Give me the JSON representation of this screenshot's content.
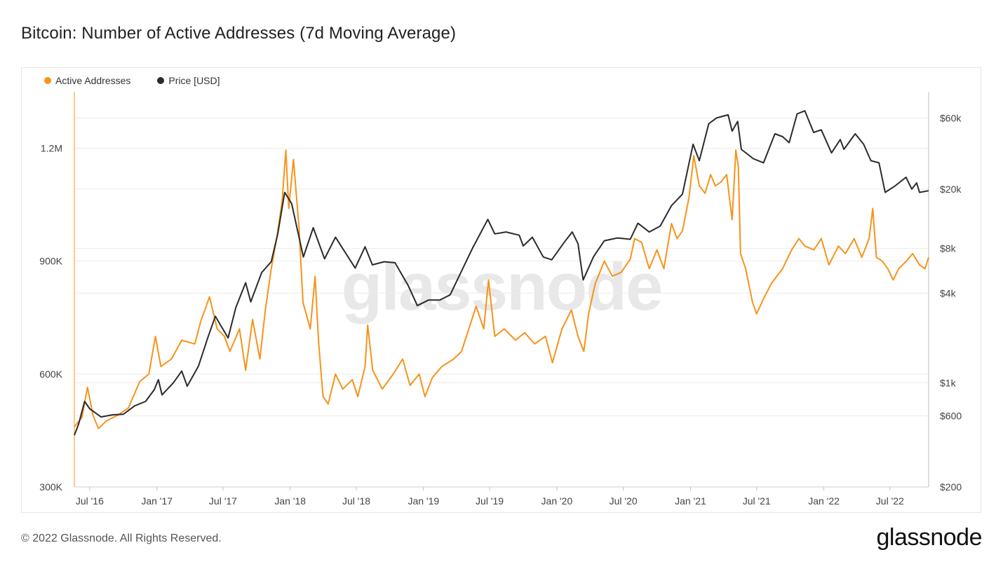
{
  "page": {
    "title": "Bitcoin: Number of Active Addresses (7d Moving Average)",
    "copyright": "© 2022 Glassnode. All Rights Reserved.",
    "brand": "glassnode",
    "watermark": "glassnode"
  },
  "colors": {
    "active_addresses": "#f7931a",
    "price": "#2b2b2b",
    "grid": "#ececec"
  },
  "chart_data": {
    "type": "line",
    "title": "Bitcoin: Number of Active Addresses (7d Moving Average)",
    "x_tick_labels": [
      "Jul '16",
      "Jan '17",
      "Jul '17",
      "Jan '18",
      "Jul '18",
      "Jan '19",
      "Jul '19",
      "Jan '20",
      "Jul '20",
      "Jan '21",
      "Jul '21",
      "Jan '22",
      "Jul '22"
    ],
    "x_tick_dates": [
      "2016-07-01",
      "2017-01-01",
      "2017-07-01",
      "2018-01-01",
      "2018-07-01",
      "2019-01-01",
      "2019-07-01",
      "2020-01-01",
      "2020-07-01",
      "2021-01-01",
      "2021-07-01",
      "2022-01-01",
      "2022-07-01"
    ],
    "x_range": [
      "2016-05-20",
      "2022-10-15"
    ],
    "y_left": {
      "scale": "linear",
      "range": [
        300000,
        1350000
      ],
      "ticks": [
        300000,
        600000,
        900000,
        1200000
      ],
      "tick_labels": [
        "300K",
        "600K",
        "900K",
        "1.2M"
      ]
    },
    "y_right": {
      "scale": "log",
      "range": [
        200,
        90000
      ],
      "ticks": [
        200,
        600,
        1000,
        4000,
        8000,
        20000,
        60000
      ],
      "tick_labels": [
        "$200",
        "$600",
        "$1k",
        "$4k",
        "$8k",
        "$20k",
        "$60k"
      ]
    },
    "grid": true,
    "legend_position": "top-left",
    "series": [
      {
        "name": "Active Addresses",
        "axis": "left",
        "points": [
          [
            "2016-05-20",
            460000
          ],
          [
            "2016-06-10",
            485000
          ],
          [
            "2016-06-25",
            565000
          ],
          [
            "2016-07-10",
            490000
          ],
          [
            "2016-07-25",
            455000
          ],
          [
            "2016-08-15",
            475000
          ],
          [
            "2016-09-15",
            490000
          ],
          [
            "2016-10-15",
            510000
          ],
          [
            "2016-11-15",
            580000
          ],
          [
            "2016-12-10",
            600000
          ],
          [
            "2016-12-28",
            700000
          ],
          [
            "2017-01-12",
            620000
          ],
          [
            "2017-02-10",
            640000
          ],
          [
            "2017-03-10",
            690000
          ],
          [
            "2017-04-15",
            680000
          ],
          [
            "2017-05-01",
            740000
          ],
          [
            "2017-05-25",
            805000
          ],
          [
            "2017-06-15",
            720000
          ],
          [
            "2017-07-05",
            700000
          ],
          [
            "2017-07-20",
            660000
          ],
          [
            "2017-08-15",
            720000
          ],
          [
            "2017-09-01",
            610000
          ],
          [
            "2017-09-20",
            745000
          ],
          [
            "2017-10-10",
            640000
          ],
          [
            "2017-10-25",
            770000
          ],
          [
            "2017-11-10",
            880000
          ],
          [
            "2017-11-25",
            960000
          ],
          [
            "2017-12-10",
            1060000
          ],
          [
            "2017-12-20",
            1195000
          ],
          [
            "2017-12-28",
            1040000
          ],
          [
            "2018-01-10",
            1170000
          ],
          [
            "2018-01-25",
            990000
          ],
          [
            "2018-02-05",
            790000
          ],
          [
            "2018-02-25",
            720000
          ],
          [
            "2018-03-10",
            860000
          ],
          [
            "2018-03-20",
            680000
          ],
          [
            "2018-04-01",
            540000
          ],
          [
            "2018-04-15",
            520000
          ],
          [
            "2018-05-05",
            600000
          ],
          [
            "2018-05-25",
            560000
          ],
          [
            "2018-06-20",
            585000
          ],
          [
            "2018-07-05",
            540000
          ],
          [
            "2018-07-25",
            620000
          ],
          [
            "2018-08-01",
            730000
          ],
          [
            "2018-08-15",
            610000
          ],
          [
            "2018-09-10",
            560000
          ],
          [
            "2018-10-10",
            600000
          ],
          [
            "2018-11-05",
            640000
          ],
          [
            "2018-11-25",
            570000
          ],
          [
            "2018-12-20",
            600000
          ],
          [
            "2019-01-05",
            540000
          ],
          [
            "2019-01-25",
            590000
          ],
          [
            "2019-02-20",
            620000
          ],
          [
            "2019-03-25",
            640000
          ],
          [
            "2019-04-15",
            660000
          ],
          [
            "2019-05-05",
            720000
          ],
          [
            "2019-05-25",
            780000
          ],
          [
            "2019-06-15",
            720000
          ],
          [
            "2019-06-28",
            850000
          ],
          [
            "2019-07-15",
            700000
          ],
          [
            "2019-08-10",
            720000
          ],
          [
            "2019-09-10",
            690000
          ],
          [
            "2019-10-05",
            710000
          ],
          [
            "2019-11-01",
            680000
          ],
          [
            "2019-12-01",
            700000
          ],
          [
            "2019-12-20",
            630000
          ],
          [
            "2020-01-15",
            720000
          ],
          [
            "2020-02-10",
            770000
          ],
          [
            "2020-02-28",
            700000
          ],
          [
            "2020-03-15",
            660000
          ],
          [
            "2020-03-28",
            760000
          ],
          [
            "2020-04-15",
            840000
          ],
          [
            "2020-05-10",
            900000
          ],
          [
            "2020-06-01",
            860000
          ],
          [
            "2020-06-25",
            870000
          ],
          [
            "2020-07-20",
            905000
          ],
          [
            "2020-08-01",
            960000
          ],
          [
            "2020-08-20",
            950000
          ],
          [
            "2020-09-10",
            880000
          ],
          [
            "2020-10-01",
            930000
          ],
          [
            "2020-10-20",
            880000
          ],
          [
            "2020-11-10",
            1000000
          ],
          [
            "2020-11-25",
            960000
          ],
          [
            "2020-12-10",
            980000
          ],
          [
            "2020-12-28",
            1070000
          ],
          [
            "2021-01-10",
            1180000
          ],
          [
            "2021-01-25",
            1100000
          ],
          [
            "2021-02-10",
            1080000
          ],
          [
            "2021-02-25",
            1130000
          ],
          [
            "2021-03-10",
            1100000
          ],
          [
            "2021-03-25",
            1110000
          ],
          [
            "2021-04-10",
            1130000
          ],
          [
            "2021-04-25",
            1010000
          ],
          [
            "2021-05-05",
            1195000
          ],
          [
            "2021-05-12",
            1150000
          ],
          [
            "2021-05-18",
            920000
          ],
          [
            "2021-06-01",
            880000
          ],
          [
            "2021-06-20",
            790000
          ],
          [
            "2021-07-01",
            760000
          ],
          [
            "2021-07-20",
            800000
          ],
          [
            "2021-08-10",
            840000
          ],
          [
            "2021-09-10",
            880000
          ],
          [
            "2021-10-05",
            930000
          ],
          [
            "2021-10-25",
            960000
          ],
          [
            "2021-11-10",
            940000
          ],
          [
            "2021-12-05",
            930000
          ],
          [
            "2021-12-25",
            960000
          ],
          [
            "2022-01-15",
            890000
          ],
          [
            "2022-02-10",
            940000
          ],
          [
            "2022-03-01",
            920000
          ],
          [
            "2022-03-25",
            960000
          ],
          [
            "2022-04-15",
            910000
          ],
          [
            "2022-05-05",
            960000
          ],
          [
            "2022-05-15",
            1040000
          ],
          [
            "2022-05-25",
            910000
          ],
          [
            "2022-06-10",
            900000
          ],
          [
            "2022-06-25",
            880000
          ],
          [
            "2022-07-10",
            850000
          ],
          [
            "2022-07-25",
            880000
          ],
          [
            "2022-08-15",
            900000
          ],
          [
            "2022-09-01",
            920000
          ],
          [
            "2022-09-20",
            890000
          ],
          [
            "2022-10-05",
            880000
          ],
          [
            "2022-10-15",
            910000
          ]
        ]
      },
      {
        "name": "Price [USD]",
        "axis": "right",
        "points": [
          [
            "2016-05-20",
            445
          ],
          [
            "2016-06-01",
            530
          ],
          [
            "2016-06-17",
            750
          ],
          [
            "2016-07-01",
            670
          ],
          [
            "2016-08-01",
            590
          ],
          [
            "2016-09-01",
            610
          ],
          [
            "2016-10-01",
            615
          ],
          [
            "2016-11-01",
            700
          ],
          [
            "2016-12-01",
            750
          ],
          [
            "2016-12-25",
            900
          ],
          [
            "2017-01-05",
            1050
          ],
          [
            "2017-01-15",
            830
          ],
          [
            "2017-02-15",
            1000
          ],
          [
            "2017-03-10",
            1200
          ],
          [
            "2017-03-25",
            950
          ],
          [
            "2017-04-25",
            1300
          ],
          [
            "2017-05-20",
            2000
          ],
          [
            "2017-06-10",
            2800
          ],
          [
            "2017-07-15",
            2000
          ],
          [
            "2017-08-05",
            3200
          ],
          [
            "2017-09-01",
            4700
          ],
          [
            "2017-09-15",
            3500
          ],
          [
            "2017-10-15",
            5500
          ],
          [
            "2017-11-10",
            6500
          ],
          [
            "2017-11-28",
            10000
          ],
          [
            "2017-12-17",
            19000
          ],
          [
            "2018-01-05",
            16000
          ],
          [
            "2018-02-06",
            7000
          ],
          [
            "2018-03-05",
            11000
          ],
          [
            "2018-04-05",
            6800
          ],
          [
            "2018-05-05",
            9500
          ],
          [
            "2018-06-28",
            5900
          ],
          [
            "2018-07-25",
            8200
          ],
          [
            "2018-08-14",
            6200
          ],
          [
            "2018-09-15",
            6500
          ],
          [
            "2018-10-15",
            6400
          ],
          [
            "2018-11-20",
            4500
          ],
          [
            "2018-12-15",
            3300
          ],
          [
            "2019-01-15",
            3600
          ],
          [
            "2019-02-15",
            3600
          ],
          [
            "2019-03-15",
            3900
          ],
          [
            "2019-04-05",
            5000
          ],
          [
            "2019-05-15",
            8000
          ],
          [
            "2019-06-26",
            12500
          ],
          [
            "2019-07-15",
            10000
          ],
          [
            "2019-08-15",
            10300
          ],
          [
            "2019-09-20",
            9800
          ],
          [
            "2019-10-01",
            8300
          ],
          [
            "2019-10-26",
            9500
          ],
          [
            "2019-11-25",
            7000
          ],
          [
            "2019-12-18",
            6700
          ],
          [
            "2020-01-20",
            8700
          ],
          [
            "2020-02-12",
            10300
          ],
          [
            "2020-02-28",
            8600
          ],
          [
            "2020-03-13",
            4900
          ],
          [
            "2020-04-10",
            7000
          ],
          [
            "2020-05-10",
            9000
          ],
          [
            "2020-06-15",
            9400
          ],
          [
            "2020-07-20",
            9200
          ],
          [
            "2020-08-10",
            11800
          ],
          [
            "2020-09-10",
            10300
          ],
          [
            "2020-10-10",
            11300
          ],
          [
            "2020-11-10",
            15500
          ],
          [
            "2020-12-10",
            18500
          ],
          [
            "2021-01-08",
            40000
          ],
          [
            "2021-01-25",
            31000
          ],
          [
            "2021-02-20",
            55000
          ],
          [
            "2021-03-13",
            60000
          ],
          [
            "2021-04-14",
            63000
          ],
          [
            "2021-04-25",
            49000
          ],
          [
            "2021-05-10",
            57000
          ],
          [
            "2021-05-20",
            37000
          ],
          [
            "2021-06-22",
            32000
          ],
          [
            "2021-07-20",
            30000
          ],
          [
            "2021-08-20",
            47000
          ],
          [
            "2021-09-10",
            45000
          ],
          [
            "2021-09-28",
            41000
          ],
          [
            "2021-10-20",
            64000
          ],
          [
            "2021-11-10",
            67000
          ],
          [
            "2021-12-04",
            48000
          ],
          [
            "2021-12-25",
            50000
          ],
          [
            "2022-01-22",
            35000
          ],
          [
            "2022-02-15",
            43000
          ],
          [
            "2022-02-25",
            37000
          ],
          [
            "2022-03-28",
            47000
          ],
          [
            "2022-04-20",
            40000
          ],
          [
            "2022-05-10",
            31000
          ],
          [
            "2022-06-01",
            30000
          ],
          [
            "2022-06-18",
            19000
          ],
          [
            "2022-07-15",
            21000
          ],
          [
            "2022-08-14",
            24000
          ],
          [
            "2022-08-30",
            20000
          ],
          [
            "2022-09-12",
            22000
          ],
          [
            "2022-09-20",
            19000
          ],
          [
            "2022-10-15",
            19500
          ]
        ]
      }
    ]
  }
}
